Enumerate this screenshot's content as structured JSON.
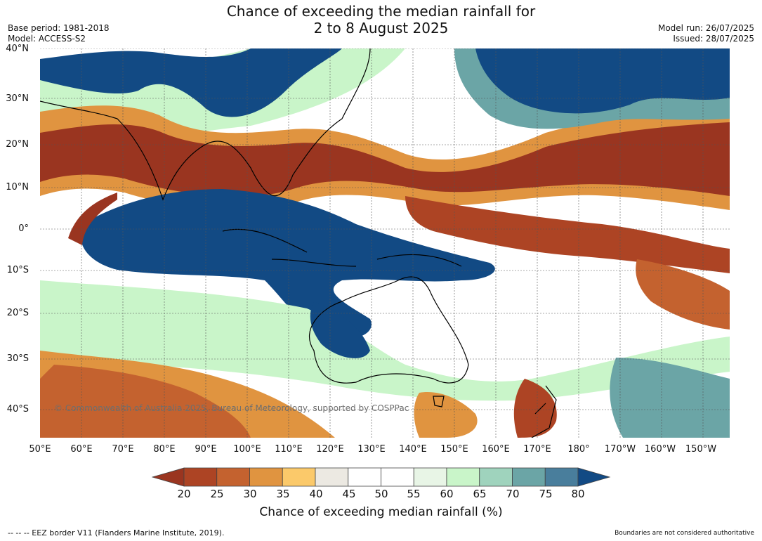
{
  "header": {
    "title_line1": "Chance of exceeding the median rainfall for",
    "title_line2": "2 to 8 August 2025",
    "base_period": "Base period: 1981-2018",
    "model": "Model: ACCESS-S2",
    "model_run": "Model run: 26/07/2025",
    "issued": "Issued: 28/07/2025"
  },
  "map": {
    "lat_labels": [
      "40°N",
      "30°N",
      "20°N",
      "10°N",
      "0°",
      "10°S",
      "20°S",
      "30°S",
      "40°S"
    ],
    "lon_labels": [
      "50°E",
      "60°E",
      "70°E",
      "80°E",
      "90°E",
      "100°E",
      "110°E",
      "120°E",
      "130°E",
      "140°E",
      "150°E",
      "160°E",
      "170°E",
      "180°",
      "170°W",
      "160°W",
      "150°W"
    ],
    "copyright": "© Commonwealth of Australia 2025, Bureau of Meteorology, supported by COSPPac"
  },
  "colorbar": {
    "ticks": [
      "20",
      "25",
      "30",
      "35",
      "40",
      "45",
      "50",
      "55",
      "60",
      "65",
      "70",
      "75",
      "80"
    ],
    "colors": [
      "#9a3520",
      "#ad4424",
      "#c4622f",
      "#e09440",
      "#fbc96a",
      "#ece9e2",
      "#ffffff",
      "#ffffff",
      "#e8f5e6",
      "#c9f5c9",
      "#9fd3bd",
      "#6ba5a6",
      "#497e9c",
      "#124a84"
    ],
    "label": "Chance of exceeding median rainfall (%)"
  },
  "footer": {
    "eez_note": "--  --  -- EEZ border V11 (Flanders Marine Institute, 2019).",
    "boundaries_note": "Boundaries are not considered authoritative"
  }
}
